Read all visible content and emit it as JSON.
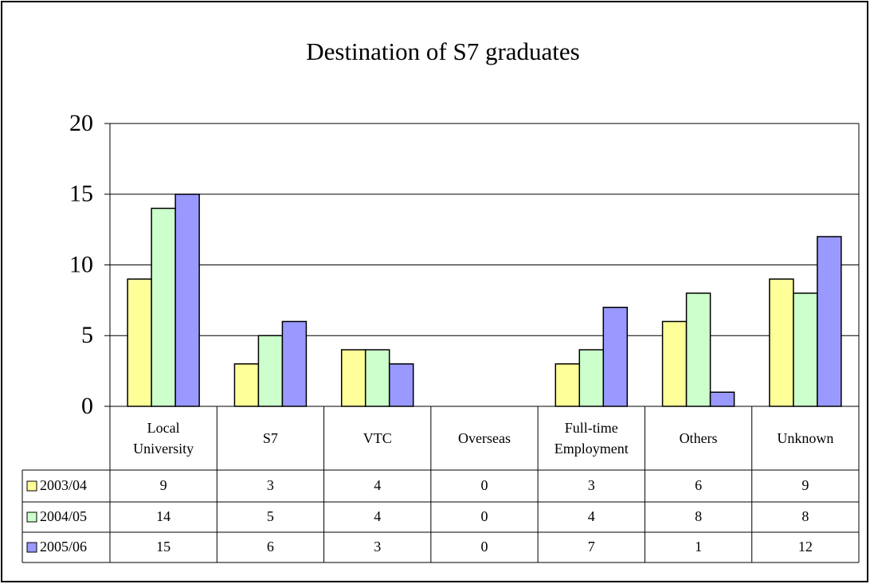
{
  "chart_data": {
    "type": "bar",
    "title": "Destination of S7 graduates",
    "categories": [
      "Local University",
      "S7",
      "VTC",
      "Overseas",
      "Full-time Employment",
      "Others",
      "Unknown"
    ],
    "series": [
      {
        "name": "2003/04",
        "color": "#ffff99",
        "values": [
          9,
          3,
          4,
          0,
          3,
          6,
          9
        ]
      },
      {
        "name": "2004/05",
        "color": "#ccffcc",
        "values": [
          14,
          5,
          4,
          0,
          4,
          8,
          8
        ]
      },
      {
        "name": "2005/06",
        "color": "#9999ff",
        "values": [
          15,
          6,
          3,
          0,
          7,
          1,
          12
        ]
      }
    ],
    "ylim": [
      0,
      20
    ],
    "yticks": [
      0,
      5,
      10,
      15,
      20
    ],
    "grid": true
  }
}
